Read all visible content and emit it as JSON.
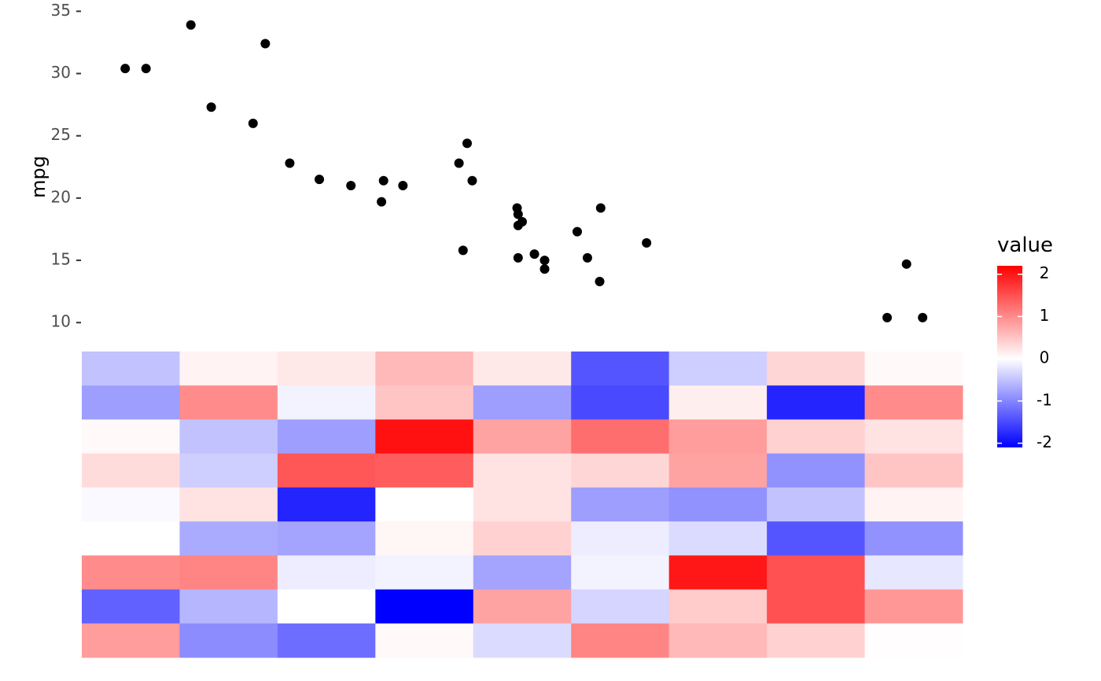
{
  "chart_data": [
    {
      "type": "scatter",
      "ylabel": "mpg",
      "xlabel": "",
      "ylim": [
        8.5,
        35.4
      ],
      "y_ticks": [
        "10",
        "15",
        "20",
        "25",
        "30",
        "35"
      ],
      "y_tick_values": [
        10,
        15,
        20,
        25,
        30,
        35
      ],
      "x_ticks_shown": false,
      "grid": false,
      "point_color": "#000000",
      "points": [
        {
          "x": 1.513,
          "y": 30.4
        },
        {
          "x": 1.615,
          "y": 30.4
        },
        {
          "x": 1.835,
          "y": 33.9
        },
        {
          "x": 1.935,
          "y": 27.3
        },
        {
          "x": 2.14,
          "y": 26.0
        },
        {
          "x": 2.2,
          "y": 32.4
        },
        {
          "x": 2.32,
          "y": 22.8
        },
        {
          "x": 2.465,
          "y": 21.5
        },
        {
          "x": 2.62,
          "y": 21.0
        },
        {
          "x": 2.77,
          "y": 19.7
        },
        {
          "x": 2.78,
          "y": 21.4
        },
        {
          "x": 2.875,
          "y": 21.0
        },
        {
          "x": 3.15,
          "y": 22.8
        },
        {
          "x": 3.17,
          "y": 15.8
        },
        {
          "x": 3.19,
          "y": 24.4
        },
        {
          "x": 3.215,
          "y": 21.4
        },
        {
          "x": 3.435,
          "y": 19.2
        },
        {
          "x": 3.44,
          "y": 18.7
        },
        {
          "x": 3.44,
          "y": 17.8
        },
        {
          "x": 3.44,
          "y": 15.2
        },
        {
          "x": 3.46,
          "y": 18.1
        },
        {
          "x": 3.52,
          "y": 15.5
        },
        {
          "x": 3.57,
          "y": 15.0
        },
        {
          "x": 3.57,
          "y": 14.3
        },
        {
          "x": 3.73,
          "y": 17.3
        },
        {
          "x": 3.78,
          "y": 15.2
        },
        {
          "x": 3.84,
          "y": 13.3
        },
        {
          "x": 3.845,
          "y": 19.2
        },
        {
          "x": 4.07,
          "y": 16.4
        },
        {
          "x": 5.25,
          "y": 10.4
        },
        {
          "x": 5.345,
          "y": 14.7
        },
        {
          "x": 5.424,
          "y": 10.4
        }
      ],
      "xlim": [
        1.3,
        5.62
      ]
    },
    {
      "type": "heatmap",
      "legend_title": "value",
      "legend_ticks": [
        "2",
        "1",
        "0",
        "-1",
        "-2"
      ],
      "legend_tick_values": [
        2,
        1,
        0,
        -1,
        -2
      ],
      "color_low": "#0000FF",
      "color_mid": "#FFFFFF",
      "color_high": "#FF0000",
      "value_range": [
        -2.1,
        2.2
      ],
      "legend_position": "right",
      "rows": [
        [
          -0.5,
          0.1,
          0.2,
          0.6,
          0.2,
          -1.4,
          -0.4,
          0.35,
          0.05
        ],
        [
          -0.8,
          1.0,
          -0.1,
          0.5,
          -0.8,
          -1.5,
          0.15,
          -1.8,
          1.0
        ],
        [
          0.05,
          -0.5,
          -0.8,
          2.05,
          0.8,
          1.25,
          0.85,
          0.4,
          0.25
        ],
        [
          0.3,
          -0.4,
          1.45,
          1.4,
          0.25,
          0.35,
          0.8,
          -0.9,
          0.5
        ],
        [
          -0.05,
          0.25,
          -1.8,
          0.0,
          0.25,
          -0.8,
          -0.9,
          -0.5,
          0.1
        ],
        [
          0.0,
          -0.7,
          -0.75,
          0.08,
          0.4,
          -0.15,
          -0.3,
          -1.4,
          -0.9
        ],
        [
          1.0,
          1.05,
          -0.15,
          -0.1,
          -0.75,
          -0.1,
          2.0,
          1.5,
          -0.2
        ],
        [
          -1.3,
          -0.6,
          0.0,
          -2.1,
          0.8,
          -0.35,
          0.45,
          1.5,
          0.9
        ],
        [
          0.85,
          -0.95,
          -1.2,
          0.05,
          -0.3,
          1.05,
          0.6,
          0.4,
          0.02
        ]
      ]
    }
  ]
}
